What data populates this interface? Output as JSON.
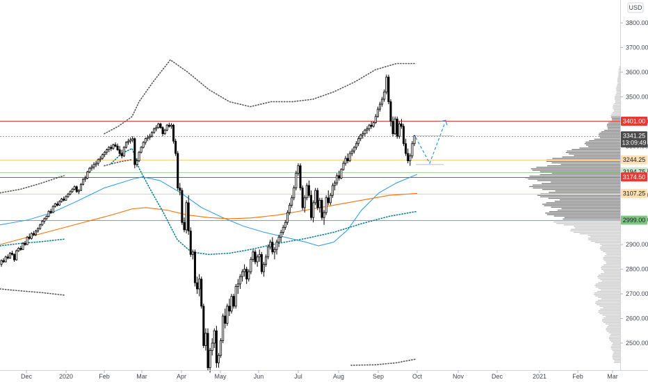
{
  "header": {
    "currency": "USD"
  },
  "chart_data": {
    "type": "candlestick",
    "symbol_currency": "USD",
    "x_ticks": [
      "Dec",
      "2020",
      "Feb",
      "Mar",
      "Apr",
      "May",
      "Jun",
      "Jul",
      "Aug",
      "Sep",
      "Oct",
      "Nov",
      "Dec",
      "2021",
      "Feb",
      "Mar"
    ],
    "y_ticks": [
      2500,
      2600,
      2700,
      2800,
      2900,
      3000,
      3100,
      3200,
      3300,
      3400,
      3500,
      3600,
      3700,
      3800
    ],
    "ylim": [
      2410,
      3890
    ],
    "price_labels": [
      {
        "text": "3401.00",
        "value": 3401.0,
        "bg": "#e53935",
        "fg": "#ffffff"
      },
      {
        "text": "3341.25",
        "value": 3341.25,
        "bg": "#4a4a4a",
        "fg": "#ffffff"
      },
      {
        "text": "13:09:49",
        "value": 3313.0,
        "bg": "#4a4a4a",
        "fg": "#ffffff"
      },
      {
        "text": "3244.25",
        "value": 3244.25,
        "bg": "#ffe0b2",
        "fg": "#131722"
      },
      {
        "text": "3194.75",
        "value": 3194.75,
        "bg": "#c8e6c9",
        "fg": "#131722"
      },
      {
        "text": "3174.50",
        "value": 3174.5,
        "bg": "#e53935",
        "fg": "#ffffff"
      },
      {
        "text": "3107.25",
        "value": 3107.25,
        "bg": "#ffe0b2",
        "fg": "#131722"
      },
      {
        "text": "2999.00",
        "value": 2999.0,
        "bg": "#81c784",
        "fg": "#131722"
      }
    ],
    "horizontal_lines": [
      {
        "value": 3401.0,
        "color": "#e53935"
      },
      {
        "value": 3341.25,
        "color": "#9e9e9e",
        "dashed": true
      },
      {
        "value": 3244.25,
        "color": "#ffcc80"
      },
      {
        "value": 3194.75,
        "color": "#a5d6a7"
      },
      {
        "value": 3174.5,
        "color": "#e53935"
      },
      {
        "value": 3107.25,
        "color": "#ffcc80"
      },
      {
        "value": 2999.0,
        "color": "#66bb6a"
      }
    ],
    "colors": {
      "up": "#ffffff",
      "down": "#000000",
      "wick": "#000000",
      "ma_blue": "#2196f3",
      "ma_orange": "#ff6d00",
      "dotted_teal": "#00838f",
      "dotted_grey": "#555555",
      "volume_profile": "#9e9e9e",
      "projection": "#2196f3"
    },
    "ohlc": [
      [
        2820,
        2840,
        2810,
        2835
      ],
      [
        2835,
        2845,
        2825,
        2830
      ],
      [
        2830,
        2855,
        2828,
        2850
      ],
      [
        2850,
        2860,
        2840,
        2845
      ],
      [
        2845,
        2870,
        2842,
        2865
      ],
      [
        2865,
        2875,
        2855,
        2860
      ],
      [
        2860,
        2865,
        2830,
        2838
      ],
      [
        2838,
        2880,
        2835,
        2875
      ],
      [
        2875,
        2890,
        2870,
        2885
      ],
      [
        2885,
        2895,
        2875,
        2880
      ],
      [
        2880,
        2910,
        2878,
        2905
      ],
      [
        2905,
        2915,
        2895,
        2900
      ],
      [
        2900,
        2935,
        2898,
        2930
      ],
      [
        2930,
        2945,
        2920,
        2925
      ],
      [
        2925,
        2950,
        2920,
        2945
      ],
      [
        2945,
        2955,
        2935,
        2940
      ],
      [
        2940,
        2960,
        2935,
        2955
      ],
      [
        2955,
        2970,
        2948,
        2965
      ],
      [
        2965,
        2985,
        2960,
        2980
      ],
      [
        2980,
        3000,
        2975,
        2995
      ],
      [
        2995,
        3010,
        2985,
        3005
      ],
      [
        3005,
        3020,
        3000,
        3015
      ],
      [
        3015,
        3040,
        3010,
        3035
      ],
      [
        3035,
        3045,
        3025,
        3030
      ],
      [
        3030,
        3060,
        3028,
        3055
      ],
      [
        3055,
        3070,
        3050,
        3065
      ],
      [
        3065,
        3075,
        3055,
        3060
      ],
      [
        3060,
        3080,
        3058,
        3075
      ],
      [
        3075,
        3090,
        3070,
        3085
      ],
      [
        3085,
        3095,
        3075,
        3080
      ],
      [
        3080,
        3100,
        3078,
        3095
      ],
      [
        3095,
        3110,
        3090,
        3105
      ],
      [
        3105,
        3120,
        3100,
        3115
      ],
      [
        3115,
        3130,
        3110,
        3125
      ],
      [
        3125,
        3140,
        3120,
        3135
      ],
      [
        3135,
        3140,
        3110,
        3115
      ],
      [
        3115,
        3125,
        3105,
        3120
      ],
      [
        3120,
        3150,
        3118,
        3145
      ],
      [
        3145,
        3170,
        3140,
        3165
      ],
      [
        3165,
        3180,
        3155,
        3170
      ],
      [
        3170,
        3200,
        3165,
        3195
      ],
      [
        3195,
        3215,
        3190,
        3210
      ],
      [
        3210,
        3225,
        3200,
        3215
      ],
      [
        3215,
        3235,
        3205,
        3225
      ],
      [
        3225,
        3240,
        3215,
        3230
      ],
      [
        3230,
        3250,
        3220,
        3245
      ],
      [
        3245,
        3260,
        3235,
        3250
      ],
      [
        3250,
        3270,
        3245,
        3265
      ],
      [
        3265,
        3280,
        3255,
        3275
      ],
      [
        3275,
        3290,
        3265,
        3285
      ],
      [
        3285,
        3300,
        3275,
        3295
      ],
      [
        3295,
        3305,
        3280,
        3290
      ],
      [
        3290,
        3310,
        3285,
        3305
      ],
      [
        3305,
        3315,
        3295,
        3300
      ],
      [
        3300,
        3310,
        3280,
        3285
      ],
      [
        3285,
        3300,
        3260,
        3270
      ],
      [
        3270,
        3285,
        3250,
        3260
      ],
      [
        3260,
        3300,
        3255,
        3295
      ],
      [
        3295,
        3320,
        3290,
        3315
      ],
      [
        3315,
        3330,
        3305,
        3320
      ],
      [
        3320,
        3335,
        3310,
        3325
      ],
      [
        3325,
        3340,
        3315,
        3330
      ],
      [
        3330,
        3335,
        3210,
        3225
      ],
      [
        3225,
        3250,
        3215,
        3240
      ],
      [
        3240,
        3280,
        3235,
        3275
      ],
      [
        3275,
        3300,
        3270,
        3295
      ],
      [
        3295,
        3320,
        3290,
        3315
      ],
      [
        3315,
        3335,
        3305,
        3330
      ],
      [
        3330,
        3345,
        3320,
        3335
      ],
      [
        3335,
        3350,
        3325,
        3340
      ],
      [
        3340,
        3360,
        3335,
        3355
      ],
      [
        3355,
        3375,
        3350,
        3370
      ],
      [
        3370,
        3385,
        3360,
        3375
      ],
      [
        3375,
        3395,
        3370,
        3390
      ],
      [
        3390,
        3395,
        3370,
        3375
      ],
      [
        3375,
        3380,
        3340,
        3350
      ],
      [
        3350,
        3370,
        3345,
        3365
      ],
      [
        3365,
        3390,
        3360,
        3385
      ],
      [
        3385,
        3395,
        3375,
        3380
      ],
      [
        3380,
        3393,
        3370,
        3385
      ],
      [
        3385,
        3390,
        3310,
        3320
      ],
      [
        3320,
        3330,
        3260,
        3270
      ],
      [
        3270,
        3280,
        3120,
        3130
      ],
      [
        3130,
        3150,
        3100,
        3120
      ],
      [
        3120,
        3130,
        2980,
        2990
      ],
      [
        2990,
        3010,
        2950,
        2960
      ],
      [
        2960,
        3080,
        2945,
        3070
      ],
      [
        3070,
        3100,
        2940,
        2955
      ],
      [
        2955,
        2970,
        2850,
        2860
      ],
      [
        2860,
        2880,
        2840,
        2870
      ],
      [
        2870,
        2880,
        2730,
        2745
      ],
      [
        2745,
        2770,
        2700,
        2720
      ],
      [
        2720,
        2780,
        2690,
        2760
      ],
      [
        2760,
        2770,
        2640,
        2650
      ],
      [
        2650,
        2660,
        2480,
        2490
      ],
      [
        2490,
        2560,
        2470,
        2540
      ],
      [
        2540,
        2560,
        2390,
        2400
      ],
      [
        2400,
        2480,
        2380,
        2470
      ],
      [
        2470,
        2520,
        2450,
        2500
      ],
      [
        2500,
        2560,
        2480,
        2550
      ],
      [
        2550,
        2570,
        2400,
        2420
      ],
      [
        2420,
        2460,
        2400,
        2450
      ],
      [
        2450,
        2520,
        2440,
        2510
      ],
      [
        2510,
        2620,
        2500,
        2610
      ],
      [
        2610,
        2640,
        2560,
        2580
      ],
      [
        2580,
        2660,
        2570,
        2650
      ],
      [
        2650,
        2680,
        2610,
        2630
      ],
      [
        2630,
        2700,
        2620,
        2690
      ],
      [
        2690,
        2700,
        2640,
        2650
      ],
      [
        2650,
        2740,
        2640,
        2730
      ],
      [
        2730,
        2760,
        2700,
        2740
      ],
      [
        2740,
        2780,
        2720,
        2770
      ],
      [
        2770,
        2800,
        2750,
        2790
      ],
      [
        2790,
        2820,
        2770,
        2800
      ],
      [
        2800,
        2810,
        2740,
        2760
      ],
      [
        2760,
        2800,
        2750,
        2790
      ],
      [
        2790,
        2850,
        2780,
        2840
      ],
      [
        2840,
        2880,
        2830,
        2870
      ],
      [
        2870,
        2880,
        2820,
        2830
      ],
      [
        2830,
        2860,
        2810,
        2850
      ],
      [
        2850,
        2880,
        2830,
        2860
      ],
      [
        2860,
        2870,
        2780,
        2790
      ],
      [
        2790,
        2830,
        2770,
        2820
      ],
      [
        2820,
        2860,
        2810,
        2850
      ],
      [
        2850,
        2900,
        2840,
        2890
      ],
      [
        2890,
        2920,
        2880,
        2910
      ],
      [
        2910,
        2930,
        2860,
        2870
      ],
      [
        2870,
        2890,
        2840,
        2880
      ],
      [
        2880,
        2920,
        2860,
        2910
      ],
      [
        2910,
        2940,
        2890,
        2930
      ],
      [
        2930,
        2960,
        2910,
        2950
      ],
      [
        2950,
        2980,
        2940,
        2970
      ],
      [
        2970,
        3000,
        2960,
        2990
      ],
      [
        2990,
        3040,
        2980,
        3030
      ],
      [
        3030,
        3070,
        3020,
        3060
      ],
      [
        3060,
        3100,
        3050,
        3090
      ],
      [
        3090,
        3140,
        3080,
        3130
      ],
      [
        3130,
        3200,
        3120,
        3190
      ],
      [
        3190,
        3230,
        3180,
        3220
      ],
      [
        3220,
        3230,
        3120,
        3130
      ],
      [
        3130,
        3140,
        3040,
        3050
      ],
      [
        3050,
        3100,
        3030,
        3090
      ],
      [
        3090,
        3150,
        3080,
        3140
      ],
      [
        3140,
        3160,
        3090,
        3100
      ],
      [
        3100,
        3120,
        3000,
        3010
      ],
      [
        3010,
        3080,
        2990,
        3070
      ],
      [
        3070,
        3130,
        3060,
        3120
      ],
      [
        3120,
        3130,
        3040,
        3050
      ],
      [
        3050,
        3090,
        3030,
        3080
      ],
      [
        3080,
        3090,
        3000,
        3010
      ],
      [
        3010,
        3040,
        2980,
        3030
      ],
      [
        3030,
        3100,
        3020,
        3090
      ],
      [
        3090,
        3120,
        3060,
        3070
      ],
      [
        3070,
        3110,
        3060,
        3100
      ],
      [
        3100,
        3150,
        3090,
        3140
      ],
      [
        3140,
        3160,
        3120,
        3150
      ],
      [
        3150,
        3190,
        3140,
        3180
      ],
      [
        3180,
        3200,
        3160,
        3170
      ],
      [
        3170,
        3210,
        3165,
        3205
      ],
      [
        3205,
        3240,
        3200,
        3230
      ],
      [
        3230,
        3260,
        3220,
        3250
      ],
      [
        3250,
        3270,
        3230,
        3240
      ],
      [
        3240,
        3280,
        3235,
        3270
      ],
      [
        3270,
        3290,
        3260,
        3280
      ],
      [
        3280,
        3300,
        3270,
        3295
      ],
      [
        3295,
        3320,
        3285,
        3310
      ],
      [
        3310,
        3340,
        3300,
        3330
      ],
      [
        3330,
        3350,
        3320,
        3345
      ],
      [
        3345,
        3360,
        3330,
        3350
      ],
      [
        3350,
        3370,
        3340,
        3365
      ],
      [
        3365,
        3380,
        3350,
        3370
      ],
      [
        3370,
        3390,
        3360,
        3385
      ],
      [
        3385,
        3400,
        3370,
        3380
      ],
      [
        3380,
        3400,
        3375,
        3395
      ],
      [
        3395,
        3430,
        3390,
        3420
      ],
      [
        3420,
        3460,
        3415,
        3450
      ],
      [
        3450,
        3480,
        3440,
        3470
      ],
      [
        3470,
        3500,
        3460,
        3490
      ],
      [
        3490,
        3530,
        3480,
        3520
      ],
      [
        3520,
        3590,
        3510,
        3580
      ],
      [
        3580,
        3590,
        3470,
        3480
      ],
      [
        3480,
        3490,
        3380,
        3400
      ],
      [
        3400,
        3420,
        3340,
        3350
      ],
      [
        3350,
        3420,
        3345,
        3410
      ],
      [
        3410,
        3420,
        3330,
        3340
      ],
      [
        3340,
        3400,
        3330,
        3390
      ],
      [
        3390,
        3410,
        3370,
        3380
      ],
      [
        3380,
        3390,
        3300,
        3310
      ],
      [
        3310,
        3330,
        3260,
        3270
      ],
      [
        3270,
        3290,
        3230,
        3240
      ],
      [
        3240,
        3270,
        3220,
        3260
      ],
      [
        3260,
        3320,
        3250,
        3310
      ],
      [
        3310,
        3345,
        3300,
        3341.25
      ]
    ],
    "volume_profile_range": [
      2420,
      3620
    ]
  }
}
